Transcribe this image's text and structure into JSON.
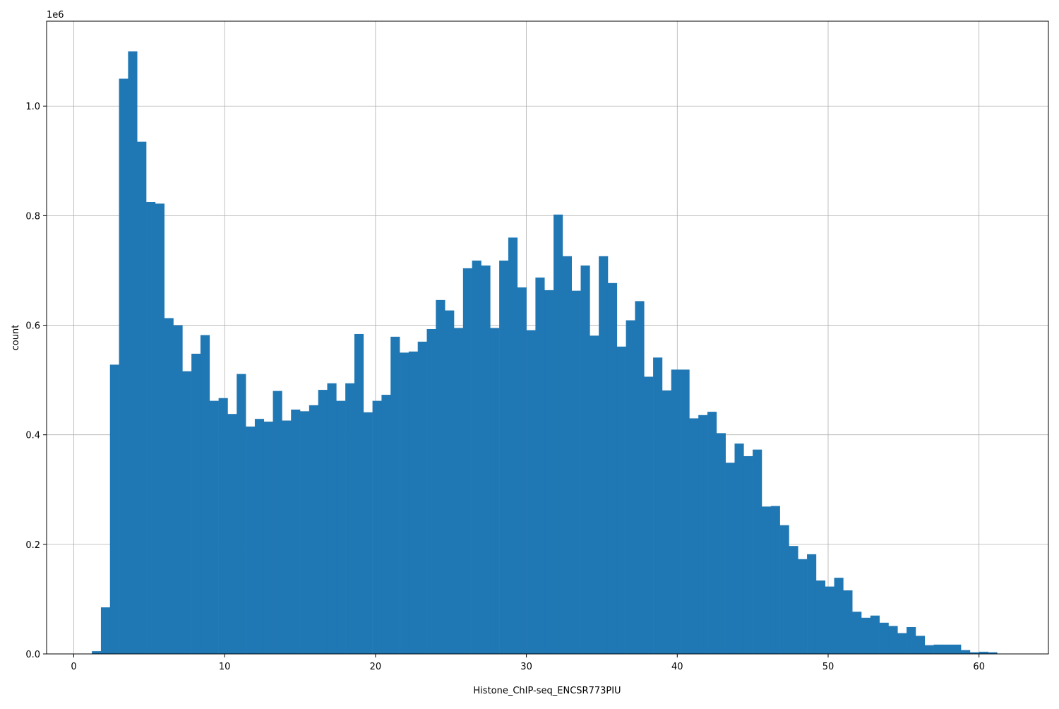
{
  "chart_data": {
    "type": "bar",
    "subtype": "histogram",
    "title": "",
    "xlabel": "Histone_ChIP-seq_ENCSR773PIU",
    "ylabel": "count",
    "y_offset_label": "1e6",
    "xlim": [
      -1.8,
      64.6
    ],
    "ylim": [
      0,
      1.155
    ],
    "y_scale_multiplier": 1000000,
    "x_ticks": [
      0,
      10,
      20,
      30,
      40,
      50,
      60
    ],
    "x_tick_labels": [
      "0",
      "10",
      "20",
      "30",
      "40",
      "50",
      "60"
    ],
    "y_ticks": [
      0.0,
      0.2,
      0.4,
      0.6,
      0.8,
      1.0
    ],
    "y_tick_labels": [
      "0.0",
      "0.2",
      "0.4",
      "0.6",
      "0.8",
      "1.0"
    ],
    "grid": true,
    "legend": "none",
    "bar_color": "#1f77b4",
    "bin_start": 1.2,
    "bin_width": 0.6,
    "values": [
      0.005,
      0.085,
      0.528,
      1.05,
      1.1,
      0.935,
      0.825,
      0.822,
      0.613,
      0.6,
      0.516,
      0.548,
      0.582,
      0.462,
      0.467,
      0.438,
      0.511,
      0.415,
      0.429,
      0.424,
      0.48,
      0.426,
      0.446,
      0.443,
      0.454,
      0.482,
      0.494,
      0.462,
      0.494,
      0.584,
      0.441,
      0.462,
      0.473,
      0.579,
      0.55,
      0.552,
      0.57,
      0.593,
      0.646,
      0.627,
      0.595,
      0.704,
      0.718,
      0.709,
      0.595,
      0.718,
      0.76,
      0.669,
      0.591,
      0.687,
      0.664,
      0.802,
      0.726,
      0.663,
      0.709,
      0.581,
      0.726,
      0.677,
      0.561,
      0.609,
      0.644,
      0.506,
      0.541,
      0.481,
      0.519,
      0.519,
      0.43,
      0.436,
      0.442,
      0.403,
      0.349,
      0.384,
      0.361,
      0.373,
      0.269,
      0.27,
      0.235,
      0.197,
      0.173,
      0.182,
      0.134,
      0.123,
      0.139,
      0.116,
      0.077,
      0.066,
      0.07,
      0.057,
      0.051,
      0.038,
      0.049,
      0.033,
      0.016,
      0.017,
      0.017,
      0.017,
      0.007,
      0.003,
      0.004,
      0.003
    ]
  }
}
